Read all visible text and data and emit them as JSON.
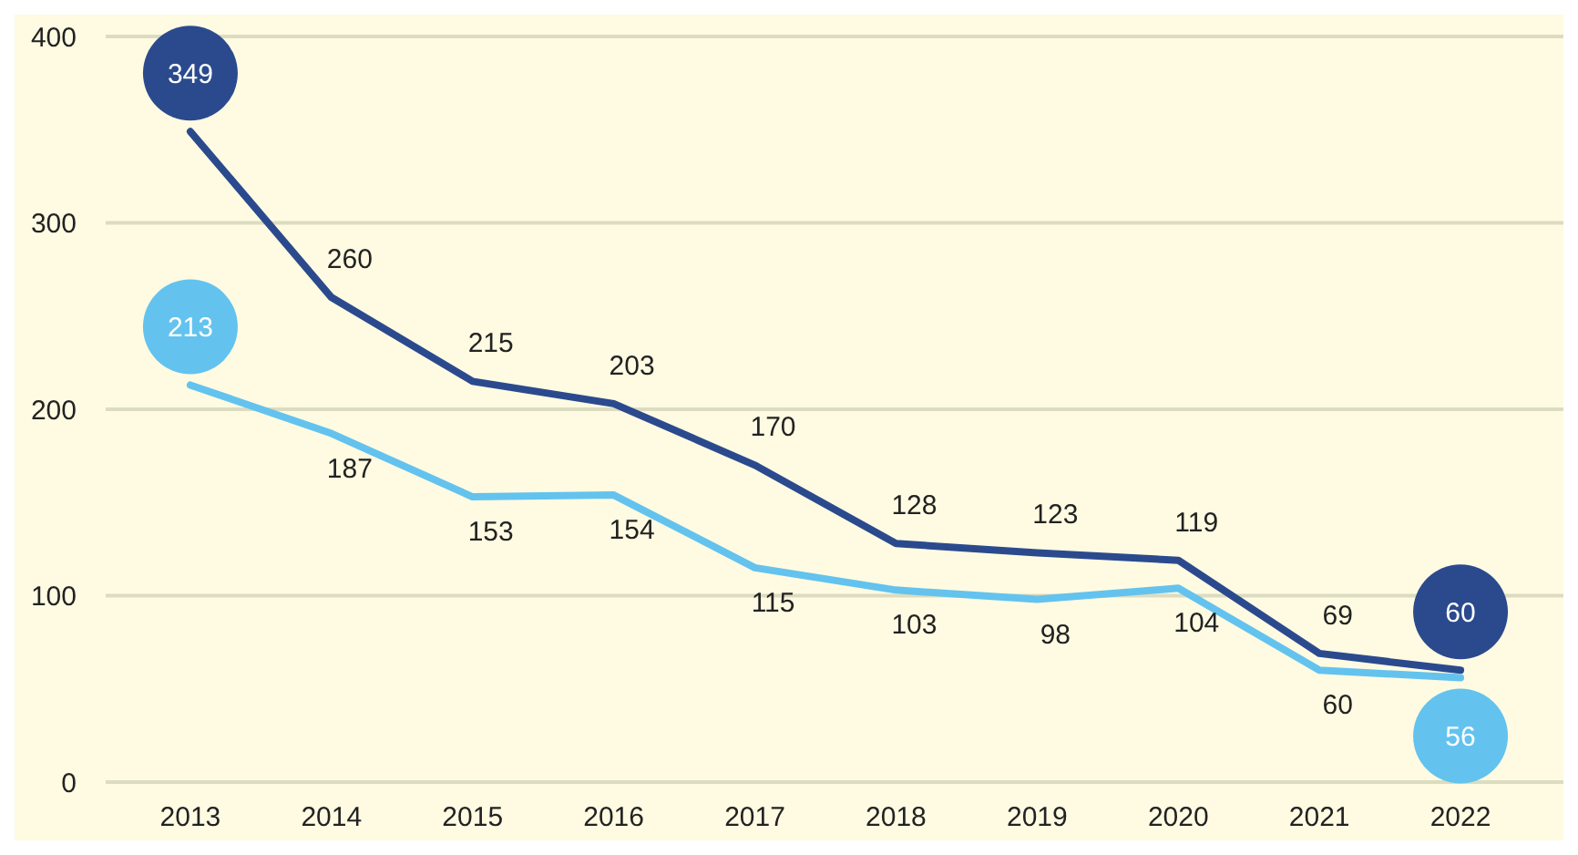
{
  "chart_data": {
    "type": "line",
    "categories": [
      "2013",
      "2014",
      "2015",
      "2016",
      "2017",
      "2018",
      "2019",
      "2020",
      "2021",
      "2022"
    ],
    "series": [
      {
        "color": "#2b4a8e",
        "values": [
          349,
          260,
          215,
          203,
          170,
          128,
          123,
          119,
          69,
          60
        ]
      },
      {
        "color": "#63c3ee",
        "values": [
          213,
          187,
          153,
          154,
          115,
          103,
          98,
          104,
          60,
          56
        ]
      }
    ],
    "ylim": [
      0,
      400
    ],
    "yticks": [
      0,
      100,
      200,
      300,
      400
    ],
    "grid": "y",
    "data_labels": true
  }
}
